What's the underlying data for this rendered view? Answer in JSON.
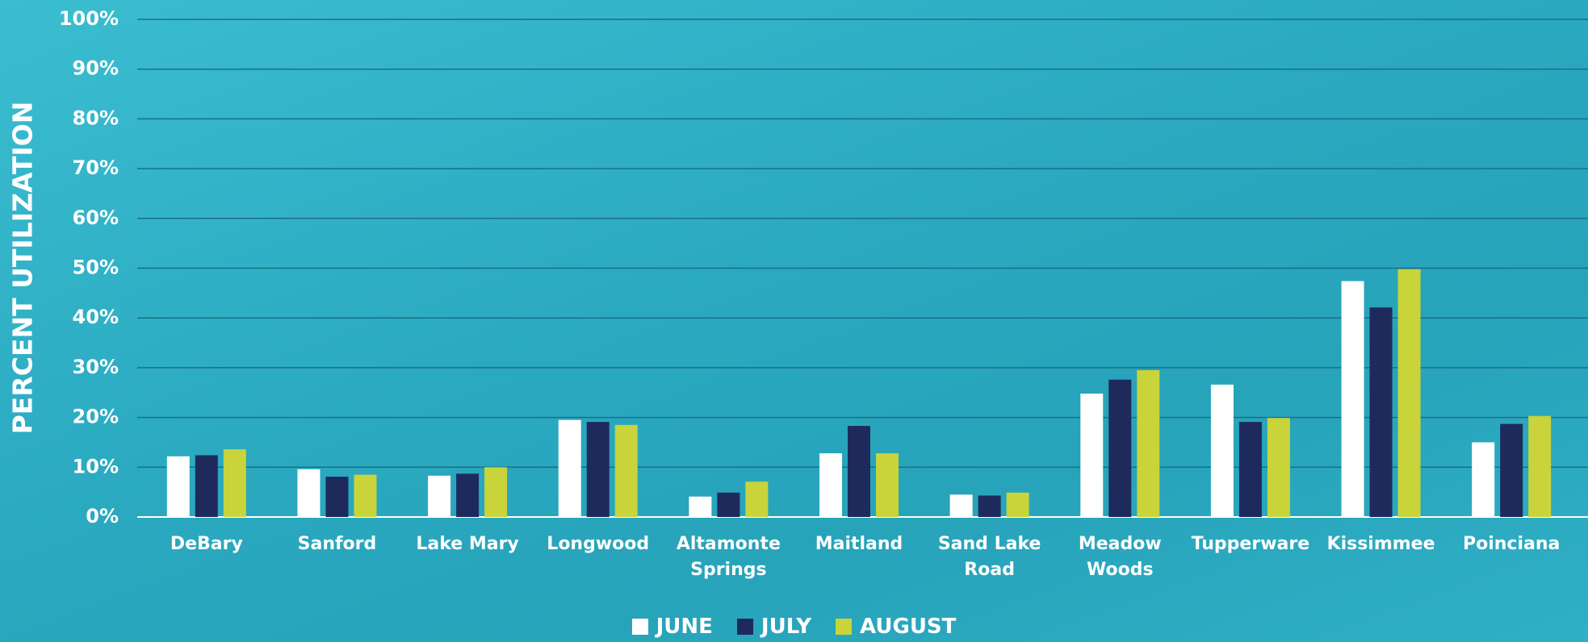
{
  "chart_data": {
    "type": "bar",
    "y_label": "PERCENT UTILIZATION",
    "categories": [
      "DeBary",
      "Sanford",
      "Lake Mary",
      "Longwood",
      "Altamonte Springs",
      "Maitland",
      "Sand Lake Road",
      "Meadow Woods",
      "Tupperware",
      "Kissimmee",
      "Poinciana"
    ],
    "series": [
      {
        "name": "JUNE",
        "color": "#ffffff",
        "values": [
          12.2,
          9.6,
          8.3,
          19.5,
          4.1,
          12.8,
          4.5,
          24.8,
          26.6,
          47.4,
          15
        ]
      },
      {
        "name": "JULY",
        "color": "#1f2a5c",
        "values": [
          12.4,
          8.1,
          8.7,
          19.1,
          4.9,
          18.3,
          4.3,
          27.6,
          19.1,
          42.1,
          18.7
        ]
      },
      {
        "name": "AUGUST",
        "color": "#c8d43a",
        "values": [
          13.6,
          8.5,
          10,
          18.5,
          7.1,
          12.8,
          4.9,
          29.5,
          19.9,
          49.8,
          20.3
        ]
      }
    ],
    "ylim": [
      0,
      100
    ],
    "yticks": [
      {
        "value": 0,
        "label": "0%"
      },
      {
        "value": 10,
        "label": "10%"
      },
      {
        "value": 20,
        "label": "20%"
      },
      {
        "value": 30,
        "label": "30%"
      },
      {
        "value": 40,
        "label": "40%"
      },
      {
        "value": 50,
        "label": "50%"
      },
      {
        "value": 60,
        "label": "60%"
      },
      {
        "value": 70,
        "label": "70%"
      },
      {
        "value": 80,
        "label": "80%"
      },
      {
        "value": 90,
        "label": "90%"
      },
      {
        "value": 100,
        "label": "100%"
      }
    ],
    "grid": true,
    "legend": "bottom"
  }
}
